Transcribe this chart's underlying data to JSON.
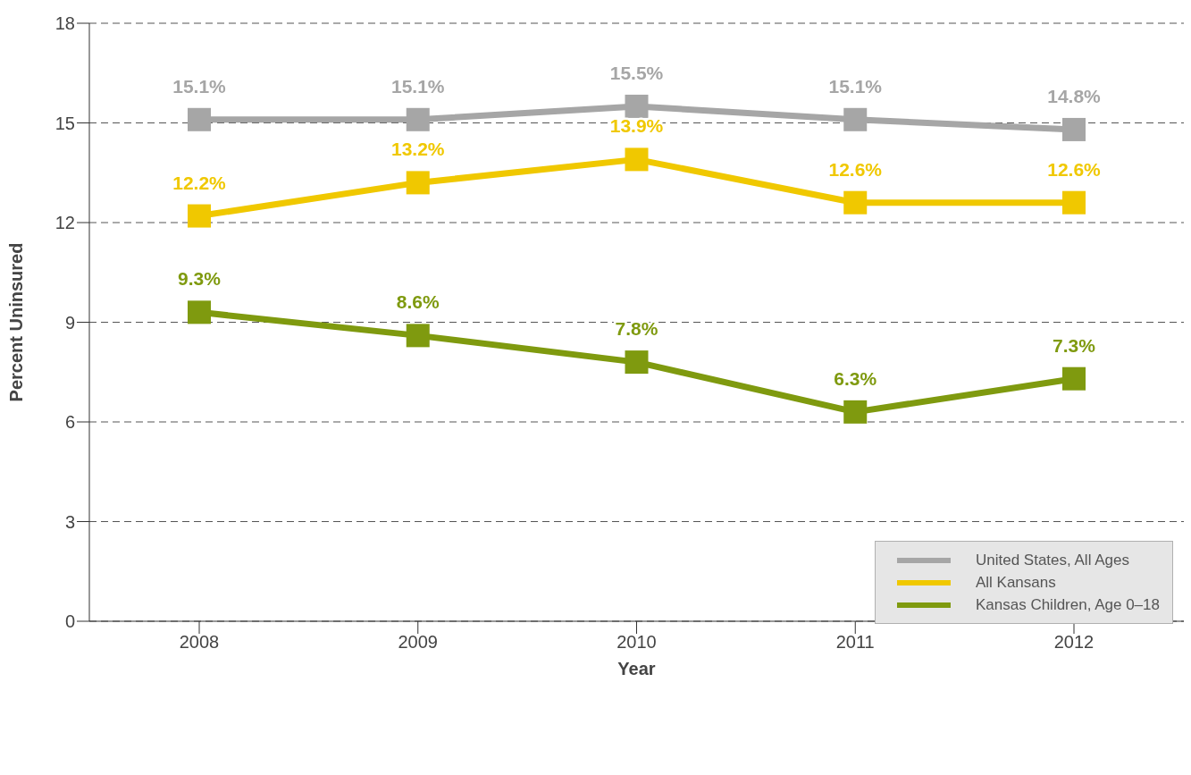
{
  "chart_data": {
    "type": "line",
    "xlabel": "Year",
    "ylabel": "Percent  Uninsured",
    "categories": [
      "2008",
      "2009",
      "2010",
      "2011",
      "2012"
    ],
    "series": [
      {
        "name": "United States, All Ages",
        "color": "#a6a6a6",
        "values": [
          15.1,
          15.1,
          15.5,
          15.1,
          14.8
        ],
        "value_labels": [
          "15.1%",
          "15.1%",
          "15.5%",
          "15.1%",
          "14.8%"
        ]
      },
      {
        "name": "All Kansans",
        "color": "#f0c800",
        "values": [
          12.2,
          13.2,
          13.9,
          12.6,
          12.6
        ],
        "value_labels": [
          "12.2%",
          "13.2%",
          "13.9%",
          "12.6%",
          "12.6%"
        ]
      },
      {
        "name": "Kansas Children, Age 0–18",
        "color": "#7f9a0f",
        "values": [
          9.3,
          8.6,
          7.8,
          6.3,
          7.3
        ],
        "value_labels": [
          "9.3%",
          "8.6%",
          "7.8%",
          "6.3%",
          "7.3%"
        ]
      }
    ],
    "ylim": [
      0,
      18
    ],
    "yticks": [
      0,
      3,
      6,
      9,
      12,
      15,
      18
    ],
    "grid": "y",
    "legend": "bottom right",
    "marker": "square",
    "line_style": "solid"
  }
}
